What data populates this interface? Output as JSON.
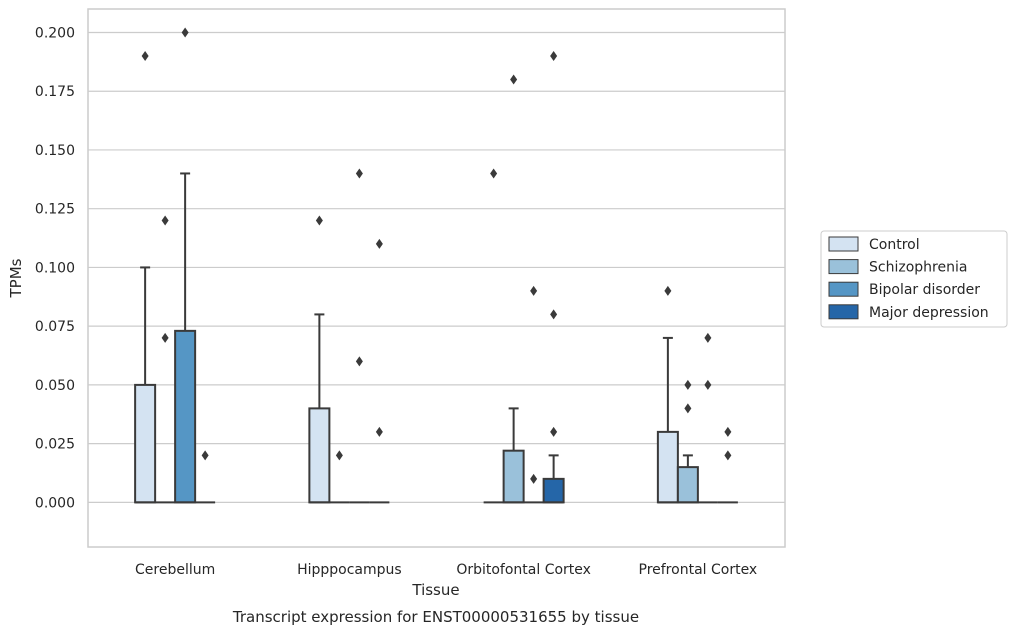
{
  "chart_data": {
    "type": "box",
    "caption": "Transcript expression for ENST00000531655 by tissue",
    "xlabel": "Tissue",
    "ylabel": "TPMs",
    "ylim": [
      -0.019,
      0.21
    ],
    "yticks": [
      0.0,
      0.025,
      0.05,
      0.075,
      0.1,
      0.125,
      0.15,
      0.175,
      0.2
    ],
    "ytick_labels": [
      "0.000",
      "0.025",
      "0.050",
      "0.075",
      "0.100",
      "0.125",
      "0.150",
      "0.175",
      "0.200"
    ],
    "grid": "horizontal",
    "legend_position": "right",
    "categories": [
      "Cerebellum",
      "Hipppocampus",
      "Orbitofontal Cortex",
      "Prefrontal Cortex"
    ],
    "series": [
      {
        "name": "Control",
        "color": "#d4e3f2",
        "boxes": [
          {
            "q1": 0,
            "median": 0,
            "q3": 0.05,
            "whisker_low": 0,
            "whisker_high": 0.1,
            "outliers": [
              0.19
            ]
          },
          {
            "q1": 0,
            "median": 0,
            "q3": 0.04,
            "whisker_low": 0,
            "whisker_high": 0.08,
            "outliers": [
              0.12
            ]
          },
          {
            "q1": 0,
            "median": 0,
            "q3": 0,
            "whisker_low": 0,
            "whisker_high": 0,
            "outliers": [
              0.14
            ]
          },
          {
            "q1": 0,
            "median": 0,
            "q3": 0.03,
            "whisker_low": 0,
            "whisker_high": 0.07,
            "outliers": [
              0.09
            ]
          }
        ]
      },
      {
        "name": "Schizophrenia",
        "color": "#9ac1da",
        "boxes": [
          {
            "q1": 0,
            "median": 0,
            "q3": 0,
            "whisker_low": 0,
            "whisker_high": 0,
            "outliers": [
              0.12,
              0.07
            ]
          },
          {
            "q1": 0,
            "median": 0,
            "q3": 0,
            "whisker_low": 0,
            "whisker_high": 0,
            "outliers": [
              0.02
            ]
          },
          {
            "q1": 0,
            "median": 0,
            "q3": 0.022,
            "whisker_low": 0,
            "whisker_high": 0.04,
            "outliers": [
              0.18
            ]
          },
          {
            "q1": 0,
            "median": 0,
            "q3": 0.015,
            "whisker_low": 0,
            "whisker_high": 0.02,
            "outliers": [
              0.05,
              0.04
            ]
          }
        ]
      },
      {
        "name": "Bipolar disorder",
        "color": "#5596c5",
        "boxes": [
          {
            "q1": 0,
            "median": 0,
            "q3": 0.073,
            "whisker_low": 0,
            "whisker_high": 0.14,
            "outliers": [
              0.2
            ]
          },
          {
            "q1": 0,
            "median": 0,
            "q3": 0,
            "whisker_low": 0,
            "whisker_high": 0,
            "outliers": [
              0.14,
              0.06
            ]
          },
          {
            "q1": 0,
            "median": 0,
            "q3": 0,
            "whisker_low": 0,
            "whisker_high": 0,
            "outliers": [
              0.09,
              0.01
            ]
          },
          {
            "q1": 0,
            "median": 0,
            "q3": 0,
            "whisker_low": 0,
            "whisker_high": 0,
            "outliers": [
              0.07,
              0.05
            ]
          }
        ]
      },
      {
        "name": "Major depression",
        "color": "#2566a8",
        "boxes": [
          {
            "q1": 0,
            "median": 0,
            "q3": 0,
            "whisker_low": 0,
            "whisker_high": 0,
            "outliers": [
              0.02
            ]
          },
          {
            "q1": 0,
            "median": 0,
            "q3": 0,
            "whisker_low": 0,
            "whisker_high": 0,
            "outliers": [
              0.11,
              0.03
            ]
          },
          {
            "q1": 0,
            "median": 0,
            "q3": 0.01,
            "whisker_low": 0,
            "whisker_high": 0.02,
            "outliers": [
              0.19,
              0.08,
              0.03
            ]
          },
          {
            "q1": 0,
            "median": 0,
            "q3": 0,
            "whisker_low": 0,
            "whisker_high": 0,
            "outliers": [
              0.03,
              0.02
            ]
          }
        ]
      }
    ]
  },
  "colors": {
    "grid": "#cccccc",
    "frame": "#cccccc",
    "edge": "#3a3a3a",
    "background": "#ffffff"
  }
}
